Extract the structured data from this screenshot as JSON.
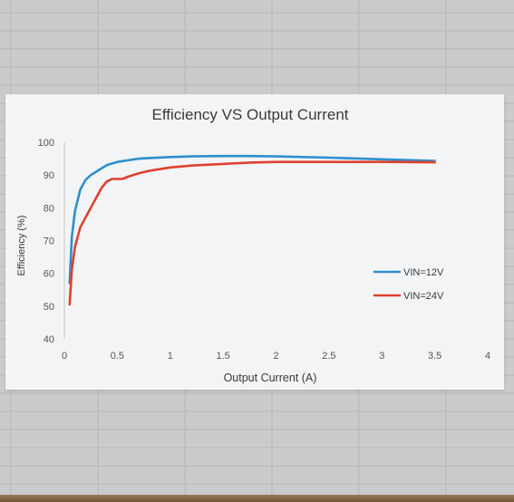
{
  "chart_data": {
    "type": "line",
    "title": "Efficiency VS Output Current",
    "xlabel": "Output Current (A)",
    "ylabel": "Efficiency (%)",
    "xlim": [
      0,
      4
    ],
    "ylim": [
      40,
      100
    ],
    "x_ticks": [
      "0",
      "0.5",
      "1",
      "1.5",
      "2",
      "2.5",
      "3",
      "3.5",
      "4"
    ],
    "y_ticks": [
      "40",
      "50",
      "60",
      "70",
      "80",
      "90",
      "100"
    ],
    "grid": false,
    "legend_position": "right",
    "series": [
      {
        "name": "VIN=12V",
        "color": "#2e8fd0",
        "x": [
          0.05,
          0.07,
          0.1,
          0.15,
          0.2,
          0.25,
          0.3,
          0.35,
          0.4,
          0.45,
          0.5,
          0.6,
          0.7,
          0.8,
          1.0,
          1.2,
          1.5,
          1.75,
          2.0,
          2.5,
          3.0,
          3.5
        ],
        "y": [
          57,
          71,
          79,
          85.5,
          88.5,
          90,
          91,
          92,
          93,
          93.5,
          94,
          94.5,
          95,
          95.2,
          95.5,
          95.7,
          95.8,
          95.8,
          95.7,
          95.3,
          94.8,
          94.3
        ]
      },
      {
        "name": "VIN=24V",
        "color": "#e0402f",
        "x": [
          0.05,
          0.07,
          0.1,
          0.15,
          0.2,
          0.25,
          0.3,
          0.35,
          0.4,
          0.45,
          0.5,
          0.55,
          0.6,
          0.7,
          0.8,
          1.0,
          1.2,
          1.5,
          1.75,
          2.0,
          2.5,
          3.0,
          3.5
        ],
        "y": [
          50.5,
          61,
          68,
          74,
          77,
          80,
          83,
          86,
          88,
          88.8,
          88.8,
          88.8,
          89.5,
          90.5,
          91.3,
          92.3,
          92.9,
          93.4,
          93.8,
          94,
          94,
          94,
          93.9
        ]
      }
    ]
  }
}
